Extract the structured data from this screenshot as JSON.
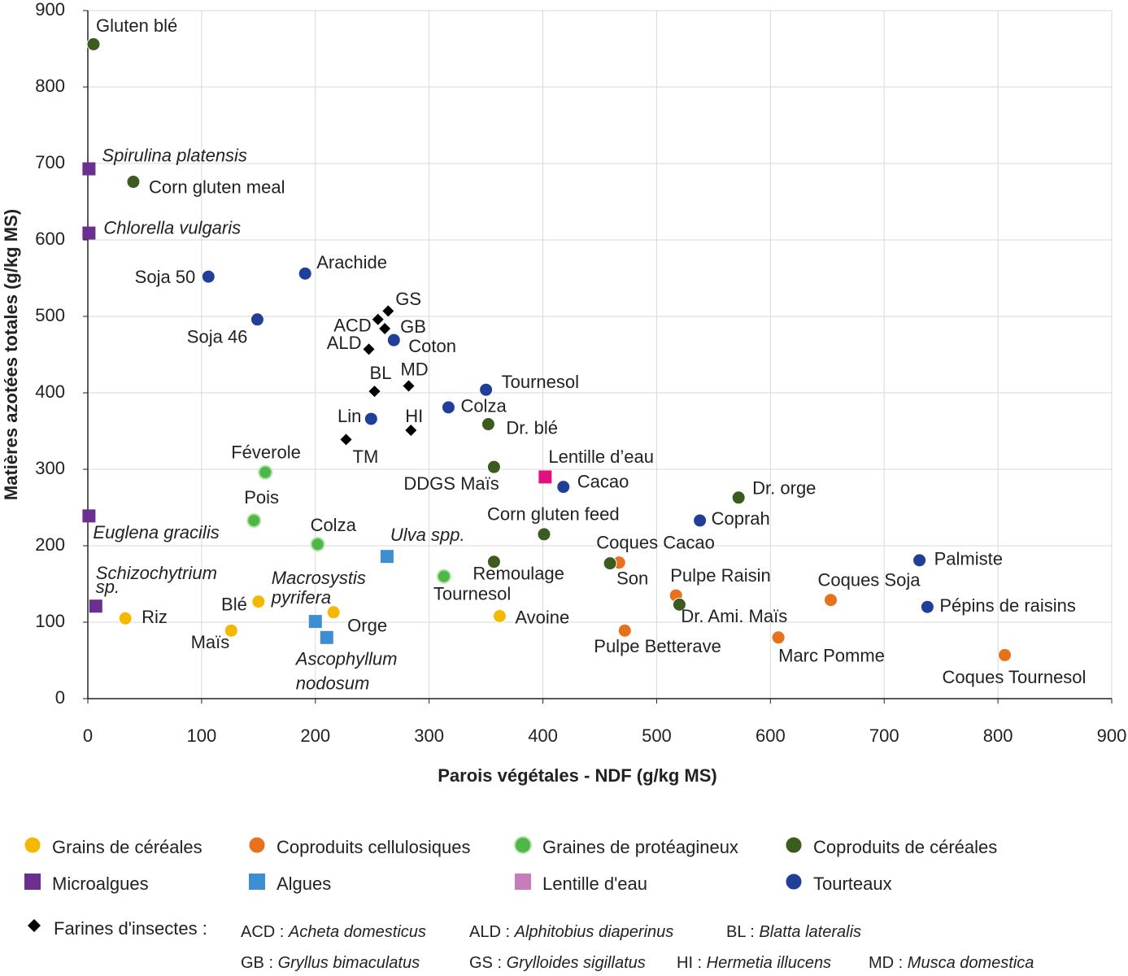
{
  "chart_data": {
    "type": "scatter",
    "xlabel": "Parois végétales - NDF (g/kg MS)",
    "ylabel": "Matières azotées totales (g/kg MS)",
    "xlim": [
      0,
      900
    ],
    "ylim": [
      0,
      900
    ],
    "xticks": [
      0,
      100,
      200,
      300,
      400,
      500,
      600,
      700,
      800,
      900
    ],
    "yticks": [
      0,
      100,
      200,
      300,
      400,
      500,
      600,
      700,
      800,
      900
    ],
    "grid": true,
    "series": [
      {
        "name": "Grains de céréales",
        "color": "#f5b800",
        "marker": "circle",
        "label_color": "#c99a06",
        "x": [
          33,
          126,
          150,
          216,
          362
        ],
        "values": [
          105,
          89,
          127,
          113,
          108
        ],
        "labels": [
          "Riz",
          "Maïs",
          "Blé",
          "Orge",
          "Avoine"
        ]
      },
      {
        "name": "Coproduits cellulosiques",
        "color": "#e8711e",
        "marker": "circle",
        "label_color": "#e8711e",
        "x": [
          467,
          517,
          653,
          472,
          607,
          806
        ],
        "values": [
          178,
          135,
          129,
          89,
          80,
          57
        ],
        "labels": [
          "Coques Cacao",
          "Pulpe Raisin",
          "Coques Soja",
          "Pulpe Betterave",
          "Marc Pomme",
          "Coques Tournesol"
        ]
      },
      {
        "name": "Graines de protéagineux",
        "color": "#4db848",
        "edgecolor": "#b4e3ac",
        "marker": "circle",
        "label_color": "#3aa648",
        "x": [
          156,
          146,
          202,
          313
        ],
        "values": [
          296,
          233,
          202,
          160
        ],
        "labels": [
          "Féverole",
          "Pois",
          "Colza",
          "Tournesol"
        ]
      },
      {
        "name": "Coproduits de céréales",
        "color": "#3b5b1f",
        "marker": "circle",
        "label_color": "#3b5b1f",
        "x": [
          5,
          40,
          352,
          357,
          401,
          357,
          459,
          520,
          572
        ],
        "values": [
          856,
          676,
          359,
          303,
          215,
          179,
          177,
          123,
          263
        ],
        "labels": [
          "Gluten blé",
          "Corn gluten meal",
          "Dr. blé",
          "DDGS Maïs",
          "Corn gluten feed",
          "Remoulage",
          "Son",
          "Dr. Ami. Maïs",
          "Dr. orge"
        ]
      },
      {
        "name": "Microalgues",
        "color": "#6a2f8f",
        "marker": "square",
        "label_color": "#6a2f8f",
        "label_italic": true,
        "x": [
          1,
          1,
          1,
          7
        ],
        "values": [
          693,
          609,
          239,
          121
        ],
        "labels": [
          "Spirulina platensis",
          "Chlorella vulgaris",
          "Euglena gracilis",
          [
            "Schizochytrium",
            "sp."
          ]
        ]
      },
      {
        "name": "Algues",
        "color": "#3d8fd1",
        "marker": "square",
        "label_color": "#1aa0d2",
        "label_italic": true,
        "x": [
          263,
          200,
          210
        ],
        "values": [
          186,
          101,
          80
        ],
        "labels": [
          "Ulva spp.",
          [
            "Macrosystis",
            "pyrifera"
          ],
          [
            "Ascophyllum",
            "nodosum"
          ]
        ]
      },
      {
        "name": "Lentille d'eau",
        "color": "#e0117f",
        "legend_color": "#c77dbb",
        "marker": "square",
        "label_color": "#e0117f",
        "x": [
          402
        ],
        "values": [
          290
        ],
        "labels": [
          "Lentille d’eau"
        ]
      },
      {
        "name": "Tourteaux",
        "color": "#1f3f99",
        "marker": "circle",
        "label_color": "#2b4ea0",
        "x": [
          106,
          191,
          149,
          269,
          350,
          317,
          249,
          418,
          538,
          731,
          738
        ],
        "values": [
          552,
          556,
          496,
          469,
          404,
          381,
          366,
          277,
          233,
          181,
          120
        ],
        "labels": [
          "Soja 50",
          "Arachide",
          "Soja 46",
          "Coton",
          "Tournesol",
          "Colza",
          "Lin",
          "Cacao",
          "Coprah",
          "Palmiste",
          "Pépins de raisins"
        ]
      },
      {
        "name": "Farines d'insectes :",
        "color": "#000000",
        "marker": "diamond",
        "label_color": "#000000",
        "x": [
          264,
          255,
          261,
          247,
          252,
          282,
          284,
          227
        ],
        "values": [
          507,
          496,
          484,
          457,
          402,
          409,
          351,
          339
        ],
        "labels": [
          "GS",
          "ACD",
          "GB",
          "ALD",
          "BL",
          "MD",
          "HI",
          "TM"
        ]
      }
    ],
    "insect_key": [
      {
        "abbr": "ACD : ",
        "name": "Acheta domesticus"
      },
      {
        "abbr": "ALD : ",
        "name": "Alphitobius diaperinus"
      },
      {
        "abbr": "BL : ",
        "name": "Blatta lateralis"
      },
      {
        "abbr": "GB : ",
        "name": "Gryllus bimaculatus"
      },
      {
        "abbr": "GS : ",
        "name": "Grylloides sigillatus"
      },
      {
        "abbr": "HI : ",
        "name": "Hermetia illucens"
      },
      {
        "abbr": "MD : ",
        "name": "Musca domestica"
      }
    ]
  }
}
